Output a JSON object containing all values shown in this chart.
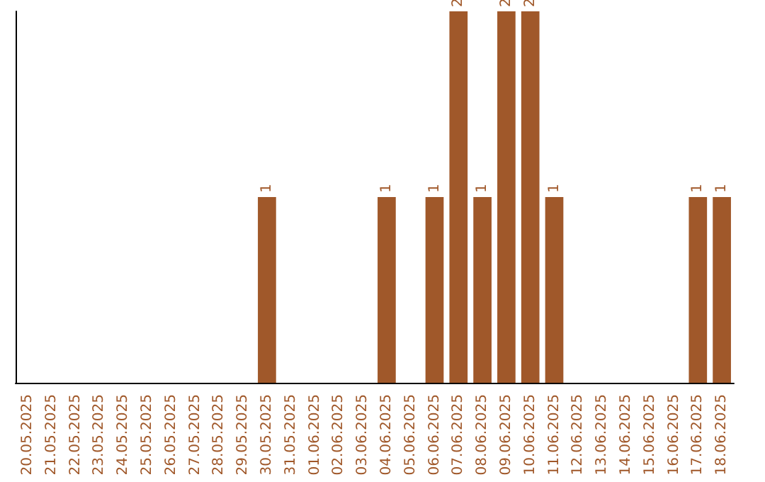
{
  "chart_data": {
    "type": "bar",
    "categories": [
      "20.05.2025",
      "21.05.2025",
      "22.05.2025",
      "23.05.2025",
      "24.05.2025",
      "25.05.2025",
      "26.05.2025",
      "27.05.2025",
      "28.05.2025",
      "29.05.2025",
      "30.05.2025",
      "31.05.2025",
      "01.06.2025",
      "02.06.2025",
      "03.06.2025",
      "04.06.2025",
      "05.06.2025",
      "06.06.2025",
      "07.06.2025",
      "08.06.2025",
      "09.06.2025",
      "10.06.2025",
      "11.06.2025",
      "12.06.2025",
      "13.06.2025",
      "14.06.2025",
      "15.06.2025",
      "16.06.2025",
      "17.06.2025",
      "18.06.2025"
    ],
    "series": [
      {
        "color": "#a0582a",
        "values": [
          0,
          0,
          0,
          0,
          0,
          0,
          0,
          0,
          0,
          0,
          1,
          0,
          0,
          0,
          0,
          1,
          0,
          1,
          2,
          1,
          2,
          2,
          1,
          0,
          0,
          0,
          0,
          0,
          1,
          1
        ],
        "value_labels": [
          null,
          null,
          null,
          null,
          null,
          null,
          null,
          null,
          null,
          null,
          "1",
          null,
          null,
          null,
          null,
          "1",
          null,
          "1",
          "2",
          "1",
          "2",
          "2",
          "1",
          null,
          null,
          null,
          null,
          null,
          "1",
          "1"
        ]
      }
    ],
    "grid": false,
    "tick_labels": "x"
  }
}
